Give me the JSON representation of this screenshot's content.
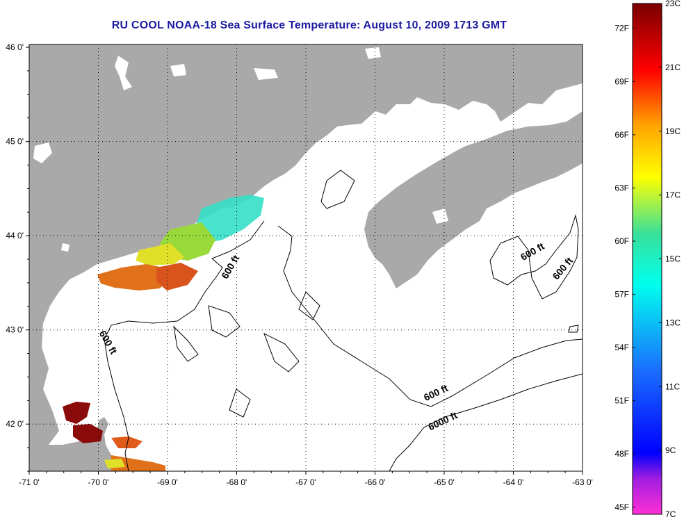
{
  "title": "RU COOL  NOAA-18  Sea Surface Temperature:  August 10, 2009 1713 GMT",
  "lon_ticks": [
    "-71 0'",
    "-70 0'",
    "-69 0'",
    "-68 0'",
    "-67 0'",
    "-66 0'",
    "-65 0'",
    "-64 0'",
    "-63 0'"
  ],
  "lat_ticks": [
    "46 0'",
    "45 0'",
    "44 0'",
    "43 0'",
    "42 0'"
  ],
  "extent": {
    "lon": [
      -71,
      -63
    ],
    "lat": [
      41.5,
      46.03
    ]
  },
  "contour_labels": [
    {
      "text": "600 ft",
      "lon": -68.05,
      "lat": 43.65,
      "angle": -60
    },
    {
      "text": "600 ft",
      "lon": -69.9,
      "lat": 42.85,
      "angle": 60
    },
    {
      "text": "600 ft",
      "lon": -63.7,
      "lat": 43.8,
      "angle": -30
    },
    {
      "text": "600 ft",
      "lon": -63.25,
      "lat": 43.63,
      "angle": -50
    },
    {
      "text": "600 ft",
      "lon": -65.1,
      "lat": 42.3,
      "angle": -25
    },
    {
      "text": "6000 ft",
      "lon": -65.0,
      "lat": 42.0,
      "angle": -25
    }
  ],
  "colorbar": {
    "fahrenheit": [
      "72F",
      "69F",
      "66F",
      "63F",
      "60F",
      "57F",
      "54F",
      "51F",
      "48F",
      "45F"
    ],
    "celsius": [
      "23C",
      "21C",
      "19C",
      "17C",
      "15C",
      "13C",
      "11C",
      "9C",
      "7C"
    ],
    "range_c": [
      7,
      23
    ]
  },
  "colors": {
    "land": "#a9a9a9",
    "water": "#ffffff",
    "title": "#1b1ba0",
    "sst_warm": "#e0701a",
    "sst_hot": "#8b0a0a",
    "sst_mid": "#9ad93a",
    "sst_cool": "#35e0c8"
  }
}
